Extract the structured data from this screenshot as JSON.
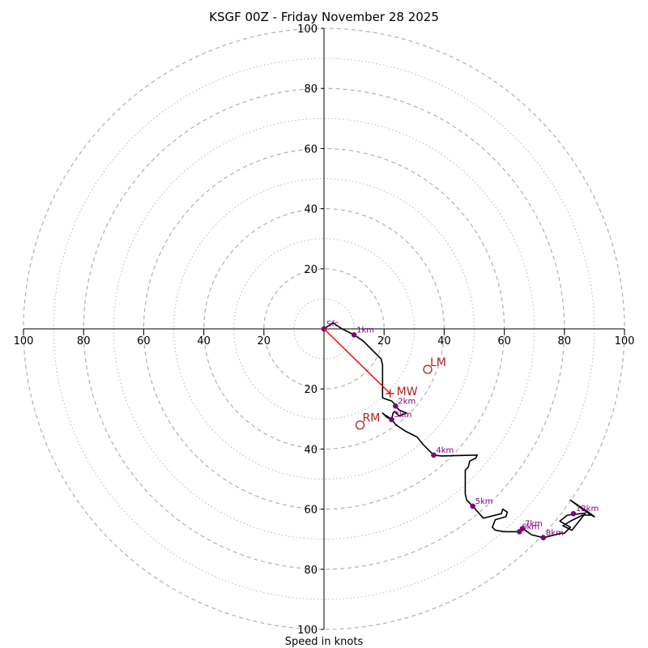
{
  "chart_data": {
    "type": "line",
    "subtype": "hodograph",
    "title": "KSGF 00Z - Friday November 28 2025",
    "xlabel": "Speed in knots",
    "ylabel": "",
    "axis_range": [
      -100,
      100
    ],
    "ring_major_step": 20,
    "ring_minor_step": 10,
    "tick_values": [
      100,
      80,
      60,
      40,
      20
    ],
    "colors": {
      "trace": "#000000",
      "height_marker": "#800080",
      "motion": "#b22222",
      "mean_wind_line": "#ff0000",
      "rings": "#b0b0b0"
    },
    "trace": [
      [
        0,
        0
      ],
      [
        3,
        2
      ],
      [
        6,
        0
      ],
      [
        10,
        -2
      ],
      [
        13,
        -4
      ],
      [
        16,
        -7
      ],
      [
        19,
        -10
      ],
      [
        19.5,
        -12
      ],
      [
        19.5,
        -15
      ],
      [
        19.5,
        -18
      ],
      [
        19.5,
        -23
      ],
      [
        21,
        -23.5
      ],
      [
        22.5,
        -24
      ],
      [
        23.5,
        -25
      ],
      [
        23.8,
        -25.7
      ],
      [
        25,
        -27
      ],
      [
        27.5,
        -28
      ],
      [
        25,
        -29
      ],
      [
        23.5,
        -27.5
      ],
      [
        23,
        -28
      ],
      [
        22.5,
        -30
      ],
      [
        20,
        -28.5
      ],
      [
        19.5,
        -28
      ],
      [
        21,
        -29.5
      ],
      [
        22.5,
        -30.2
      ],
      [
        24,
        -32
      ],
      [
        27,
        -34
      ],
      [
        31,
        -36
      ],
      [
        33,
        -38.5
      ],
      [
        36.5,
        -42
      ],
      [
        39,
        -42.3
      ],
      [
        51,
        -42
      ],
      [
        50.5,
        -43
      ],
      [
        48.5,
        -44
      ],
      [
        48,
        -46
      ],
      [
        47,
        -47
      ],
      [
        47,
        -50
      ],
      [
        47,
        -53
      ],
      [
        47,
        -55
      ],
      [
        47.5,
        -57
      ],
      [
        49.5,
        -59
      ],
      [
        53,
        -63
      ],
      [
        59,
        -61.5
      ],
      [
        59.5,
        -60
      ],
      [
        61,
        -61
      ],
      [
        60.5,
        -62.5
      ],
      [
        57,
        -63.5
      ],
      [
        56,
        -66
      ],
      [
        57,
        -67
      ],
      [
        60,
        -67.5
      ],
      [
        65,
        -67.5
      ],
      [
        66,
        -66.5
      ],
      [
        67,
        -67
      ],
      [
        69,
        -68.5
      ],
      [
        73,
        -69.5
      ],
      [
        75,
        -69
      ],
      [
        79,
        -68
      ],
      [
        80,
        -68
      ],
      [
        82,
        -66
      ],
      [
        78.5,
        -64
      ],
      [
        81,
        -62
      ],
      [
        87,
        -61.3
      ],
      [
        82.5,
        -67
      ],
      [
        79.5,
        -65.5
      ],
      [
        82,
        -64
      ],
      [
        86,
        -62
      ],
      [
        89,
        -62
      ],
      [
        86,
        -60
      ],
      [
        82,
        -57
      ],
      [
        88,
        -61
      ],
      [
        90,
        -62.5
      ],
      [
        88,
        -61.5
      ]
    ],
    "height_markers": [
      {
        "label": "Sfc",
        "u": 0,
        "v": 0
      },
      {
        "label": "1km",
        "u": 10,
        "v": -2
      },
      {
        "label": "2km",
        "u": 23.8,
        "v": -25.7
      },
      {
        "label": "3km",
        "u": 22.5,
        "v": -30.2
      },
      {
        "label": "4km",
        "u": 36.5,
        "v": -42
      },
      {
        "label": "5km",
        "u": 49.5,
        "v": -59
      },
      {
        "label": "6km",
        "u": 65,
        "v": -67.5
      },
      {
        "label": "7km",
        "u": 66,
        "v": -66.5
      },
      {
        "label": "8km",
        "u": 73,
        "v": -69.5
      },
      {
        "label": "12km",
        "u": 83,
        "v": -61.5
      }
    ],
    "motions": [
      {
        "label": "LM",
        "u": 34.5,
        "v": -13.5,
        "marker": "circle"
      },
      {
        "label": "RM",
        "u": 12,
        "v": -32,
        "marker": "circle"
      },
      {
        "label": "MW",
        "u": 22,
        "v": -21.5,
        "marker": "plus"
      }
    ]
  }
}
